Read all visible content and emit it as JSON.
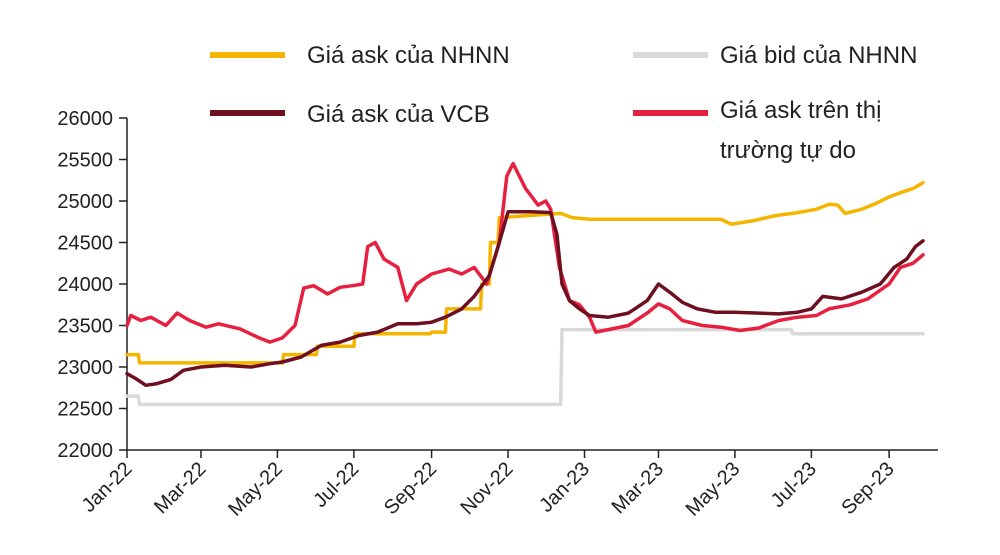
{
  "chart_data": {
    "type": "line",
    "title": "",
    "xlabel": "",
    "ylabel": "",
    "ylim": [
      22000,
      26000
    ],
    "yticks": [
      22000,
      22500,
      23000,
      23500,
      24000,
      24500,
      25000,
      25500,
      26000
    ],
    "xticks": [
      "Jan-22",
      "Mar-22",
      "May-22",
      "Jul-22",
      "Sep-22",
      "Nov-22",
      "Jan-23",
      "Mar-23",
      "May-23",
      "Jul-23",
      "Sep-23"
    ],
    "legend_position": "top",
    "grid": false,
    "series": [
      {
        "name": "Giá ask của NHNN",
        "color": "#F5B400",
        "points": [
          [
            "2022-01-01",
            23150
          ],
          [
            "2022-01-10",
            23150
          ],
          [
            "2022-01-11",
            23050
          ],
          [
            "2022-03-01",
            23050
          ],
          [
            "2022-05-05",
            23050
          ],
          [
            "2022-05-06",
            23150
          ],
          [
            "2022-06-01",
            23150
          ],
          [
            "2022-06-02",
            23250
          ],
          [
            "2022-07-01",
            23250
          ],
          [
            "2022-07-02",
            23400
          ],
          [
            "2022-08-31",
            23400
          ],
          [
            "2022-09-01",
            23420
          ],
          [
            "2022-09-12",
            23420
          ],
          [
            "2022-09-13",
            23700
          ],
          [
            "2022-10-10",
            23700
          ],
          [
            "2022-10-11",
            24000
          ],
          [
            "2022-10-17",
            24000
          ],
          [
            "2022-10-18",
            24500
          ],
          [
            "2022-10-24",
            24500
          ],
          [
            "2022-10-25",
            24800
          ],
          [
            "2022-12-13",
            24850
          ],
          [
            "2022-12-22",
            24800
          ],
          [
            "2023-01-05",
            24780
          ],
          [
            "2023-04-20",
            24780
          ],
          [
            "2023-04-28",
            24720
          ],
          [
            "2023-05-15",
            24760
          ],
          [
            "2023-06-01",
            24820
          ],
          [
            "2023-06-20",
            24860
          ],
          [
            "2023-07-05",
            24900
          ],
          [
            "2023-07-15",
            24960
          ],
          [
            "2023-07-22",
            24950
          ],
          [
            "2023-07-28",
            24850
          ],
          [
            "2023-08-10",
            24900
          ],
          [
            "2023-08-20",
            24960
          ],
          [
            "2023-09-01",
            25050
          ],
          [
            "2023-09-10",
            25100
          ],
          [
            "2023-09-20",
            25150
          ],
          [
            "2023-09-28",
            25220
          ]
        ]
      },
      {
        "name": "Giá bid của NHNN",
        "color": "#D9D9D9",
        "points": [
          [
            "2022-01-01",
            22650
          ],
          [
            "2022-01-10",
            22650
          ],
          [
            "2022-01-11",
            22550
          ],
          [
            "2022-12-13",
            22550
          ],
          [
            "2022-12-14",
            23450
          ],
          [
            "2023-06-15",
            23450
          ],
          [
            "2023-06-16",
            23400
          ],
          [
            "2023-09-28",
            23400
          ]
        ]
      },
      {
        "name": "Giá ask của VCB",
        "color": "#6E1020",
        "points": [
          [
            "2022-01-01",
            22920
          ],
          [
            "2022-01-08",
            22860
          ],
          [
            "2022-01-16",
            22780
          ],
          [
            "2022-01-25",
            22800
          ],
          [
            "2022-02-05",
            22850
          ],
          [
            "2022-02-15",
            22960
          ],
          [
            "2022-03-01",
            23000
          ],
          [
            "2022-03-20",
            23020
          ],
          [
            "2022-04-10",
            23000
          ],
          [
            "2022-04-25",
            23040
          ],
          [
            "2022-05-05",
            23060
          ],
          [
            "2022-05-20",
            23120
          ],
          [
            "2022-06-05",
            23260
          ],
          [
            "2022-06-20",
            23300
          ],
          [
            "2022-07-05",
            23380
          ],
          [
            "2022-07-20",
            23420
          ],
          [
            "2022-08-05",
            23520
          ],
          [
            "2022-08-20",
            23520
          ],
          [
            "2022-09-01",
            23540
          ],
          [
            "2022-09-12",
            23600
          ],
          [
            "2022-09-25",
            23700
          ],
          [
            "2022-10-05",
            23850
          ],
          [
            "2022-10-17",
            24100
          ],
          [
            "2022-10-25",
            24500
          ],
          [
            "2022-11-01",
            24870
          ],
          [
            "2022-11-20",
            24870
          ],
          [
            "2022-12-05",
            24860
          ],
          [
            "2022-12-10",
            24600
          ],
          [
            "2022-12-14",
            24000
          ],
          [
            "2022-12-20",
            23800
          ],
          [
            "2022-12-28",
            23700
          ],
          [
            "2023-01-05",
            23620
          ],
          [
            "2023-01-20",
            23600
          ],
          [
            "2023-02-05",
            23650
          ],
          [
            "2023-02-20",
            23800
          ],
          [
            "2023-03-01",
            24000
          ],
          [
            "2023-03-10",
            23900
          ],
          [
            "2023-03-20",
            23780
          ],
          [
            "2023-04-01",
            23700
          ],
          [
            "2023-04-15",
            23660
          ],
          [
            "2023-05-01",
            23660
          ],
          [
            "2023-05-20",
            23650
          ],
          [
            "2023-06-05",
            23640
          ],
          [
            "2023-06-20",
            23660
          ],
          [
            "2023-07-01",
            23700
          ],
          [
            "2023-07-10",
            23850
          ],
          [
            "2023-07-25",
            23820
          ],
          [
            "2023-08-10",
            23900
          ],
          [
            "2023-08-25",
            24000
          ],
          [
            "2023-09-05",
            24200
          ],
          [
            "2023-09-15",
            24300
          ],
          [
            "2023-09-22",
            24450
          ],
          [
            "2023-09-28",
            24520
          ]
        ]
      },
      {
        "name": "Giá ask trên thị trường tự do",
        "color": "#E8203F",
        "points": [
          [
            "2022-01-01",
            23500
          ],
          [
            "2022-01-04",
            23620
          ],
          [
            "2022-01-12",
            23560
          ],
          [
            "2022-01-20",
            23600
          ],
          [
            "2022-02-01",
            23500
          ],
          [
            "2022-02-10",
            23650
          ],
          [
            "2022-02-20",
            23560
          ],
          [
            "2022-03-05",
            23480
          ],
          [
            "2022-03-15",
            23520
          ],
          [
            "2022-04-01",
            23460
          ],
          [
            "2022-04-15",
            23360
          ],
          [
            "2022-04-25",
            23300
          ],
          [
            "2022-05-05",
            23350
          ],
          [
            "2022-05-15",
            23500
          ],
          [
            "2022-05-22",
            23950
          ],
          [
            "2022-05-30",
            23980
          ],
          [
            "2022-06-10",
            23880
          ],
          [
            "2022-06-20",
            23960
          ],
          [
            "2022-06-30",
            23980
          ],
          [
            "2022-07-08",
            24000
          ],
          [
            "2022-07-12",
            24450
          ],
          [
            "2022-07-18",
            24500
          ],
          [
            "2022-07-25",
            24300
          ],
          [
            "2022-08-05",
            24200
          ],
          [
            "2022-08-12",
            23800
          ],
          [
            "2022-08-20",
            24000
          ],
          [
            "2022-09-01",
            24120
          ],
          [
            "2022-09-15",
            24180
          ],
          [
            "2022-09-25",
            24120
          ],
          [
            "2022-10-05",
            24200
          ],
          [
            "2022-10-15",
            24000
          ],
          [
            "2022-10-25",
            24500
          ],
          [
            "2022-10-31",
            25300
          ],
          [
            "2022-11-05",
            25450
          ],
          [
            "2022-11-15",
            25150
          ],
          [
            "2022-11-25",
            24950
          ],
          [
            "2022-12-01",
            25000
          ],
          [
            "2022-12-05",
            24900
          ],
          [
            "2022-12-12",
            24200
          ],
          [
            "2022-12-20",
            23800
          ],
          [
            "2022-12-28",
            23750
          ],
          [
            "2023-01-05",
            23600
          ],
          [
            "2023-01-10",
            23420
          ],
          [
            "2023-01-20",
            23450
          ],
          [
            "2023-02-05",
            23500
          ],
          [
            "2023-02-20",
            23650
          ],
          [
            "2023-03-01",
            23760
          ],
          [
            "2023-03-10",
            23700
          ],
          [
            "2023-03-20",
            23560
          ],
          [
            "2023-04-05",
            23500
          ],
          [
            "2023-04-20",
            23480
          ],
          [
            "2023-05-05",
            23440
          ],
          [
            "2023-05-20",
            23470
          ],
          [
            "2023-06-05",
            23560
          ],
          [
            "2023-06-20",
            23600
          ],
          [
            "2023-07-05",
            23620
          ],
          [
            "2023-07-15",
            23700
          ],
          [
            "2023-08-01",
            23750
          ],
          [
            "2023-08-15",
            23820
          ],
          [
            "2023-09-01",
            24000
          ],
          [
            "2023-09-10",
            24200
          ],
          [
            "2023-09-20",
            24250
          ],
          [
            "2023-09-28",
            24350
          ]
        ]
      }
    ]
  }
}
